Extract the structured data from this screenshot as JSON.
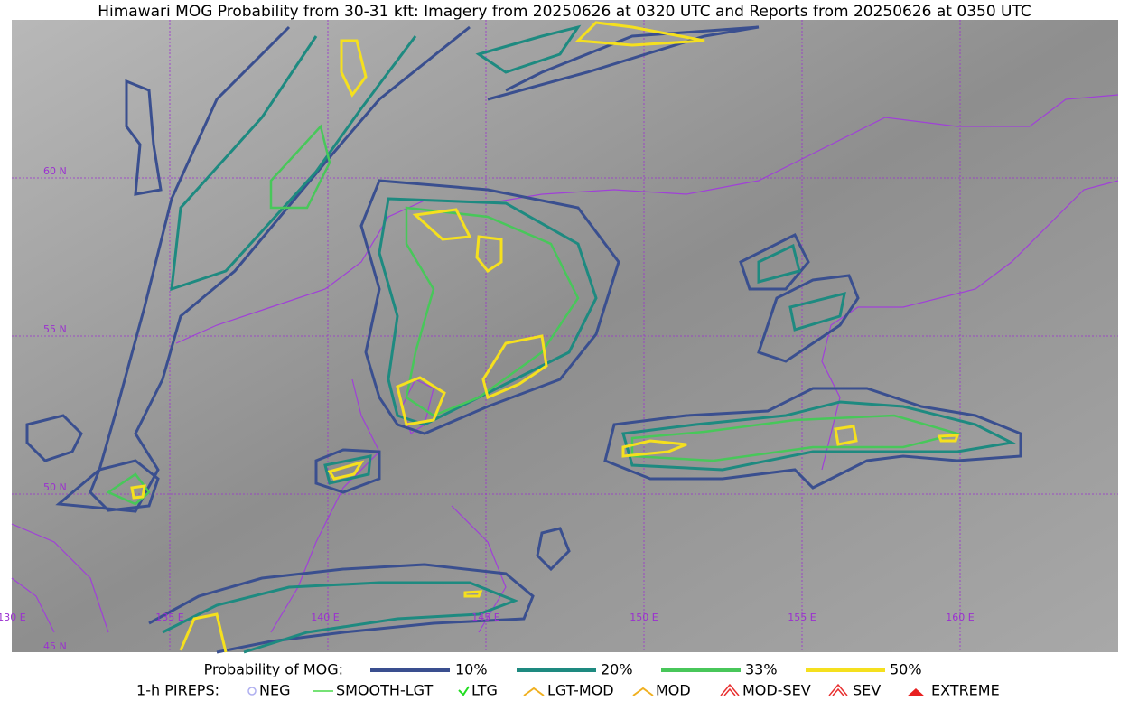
{
  "title": "Himawari MOG Probability from 30-31 kft: Imagery from 20250626 at 0320 UTC and Reports from 20250626 at 0350 UTC",
  "grid_labels": {
    "lat": [
      "60 N",
      "55 N",
      "50 N",
      "45 N"
    ],
    "lon": [
      "130 E",
      "135 E",
      "140 E",
      "145 E",
      "150 E",
      "155 E",
      "160 E"
    ]
  },
  "legend": {
    "probability": {
      "label": "Probability of MOG:",
      "items": [
        "10%",
        "20%",
        "33%",
        "50%"
      ]
    },
    "pireps": {
      "label": "1-h PIREPS:",
      "items": [
        "NEG",
        "SMOOTH-LGT",
        "LTG",
        "LGT-MOD",
        "MOD",
        "MOD-SEV",
        "SEV",
        "EXTREME"
      ]
    }
  }
}
